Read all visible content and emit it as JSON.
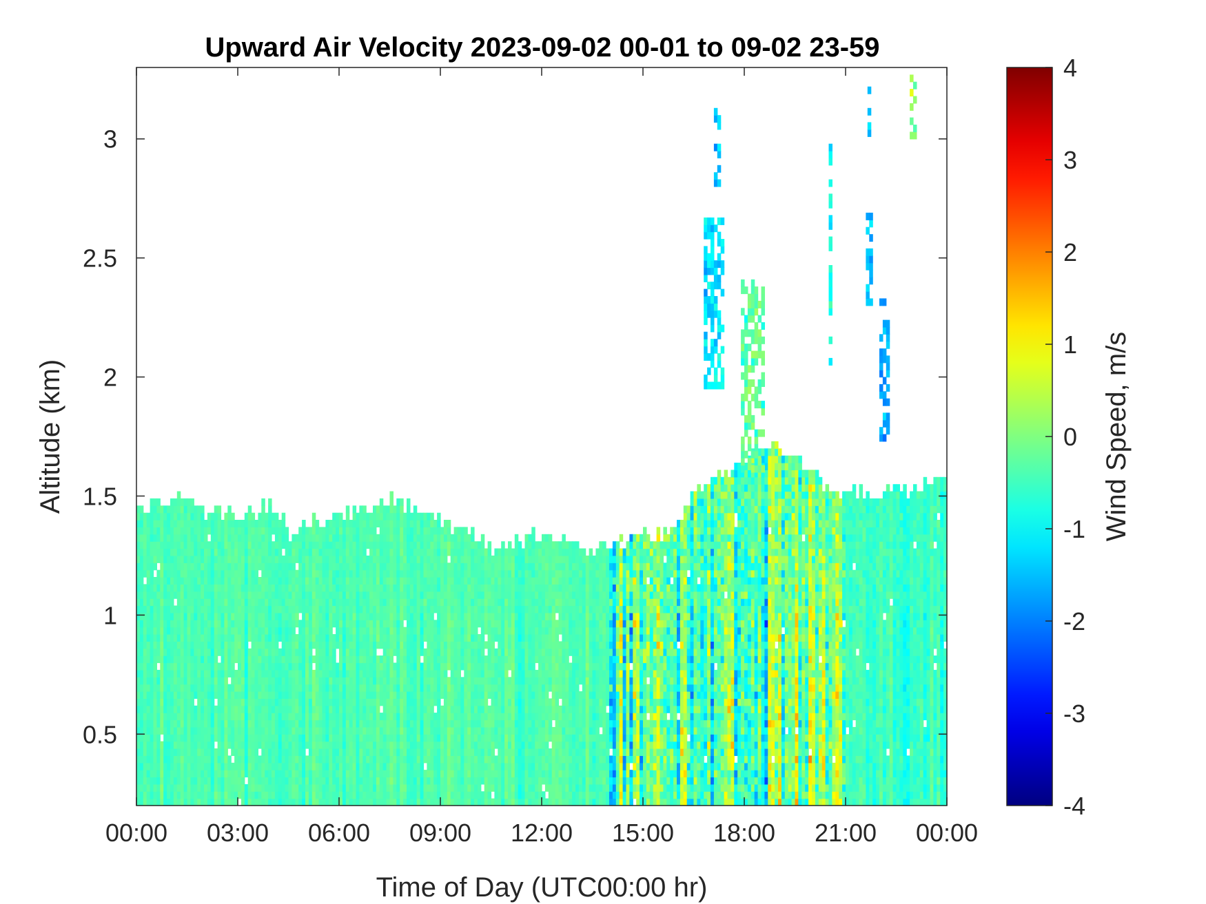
{
  "chart_data": {
    "type": "heatmap",
    "title": "Upward Air Velocity 2023-09-02 00-01 to 09-02 23-59",
    "xlabel": "Time of Day (UTC00:00 hr)",
    "ylabel": "Altitude (km)",
    "colorbar_label": "Wind Speed, m/s",
    "xlim": [
      0,
      24
    ],
    "ylim": [
      0.2,
      3.3
    ],
    "clim": [
      -4,
      4
    ],
    "colormap": "jet",
    "grid": false,
    "x_ticks": [
      {
        "value": 0,
        "label": "00:00"
      },
      {
        "value": 3,
        "label": "03:00"
      },
      {
        "value": 6,
        "label": "06:00"
      },
      {
        "value": 9,
        "label": "09:00"
      },
      {
        "value": 12,
        "label": "12:00"
      },
      {
        "value": 15,
        "label": "15:00"
      },
      {
        "value": 18,
        "label": "18:00"
      },
      {
        "value": 21,
        "label": "21:00"
      },
      {
        "value": 24,
        "label": "00:00"
      }
    ],
    "y_ticks": [
      {
        "value": 0.5,
        "label": "0.5"
      },
      {
        "value": 1,
        "label": "1"
      },
      {
        "value": 1.5,
        "label": "1.5"
      },
      {
        "value": 2,
        "label": "2"
      },
      {
        "value": 2.5,
        "label": "2.5"
      },
      {
        "value": 3,
        "label": "3"
      }
    ],
    "colorbar_ticks": [
      {
        "value": 4,
        "label": "4"
      },
      {
        "value": 3,
        "label": "3"
      },
      {
        "value": 2,
        "label": "2"
      },
      {
        "value": 1,
        "label": "1"
      },
      {
        "value": 0,
        "label": "0"
      },
      {
        "value": -1,
        "label": "-1"
      },
      {
        "value": -2,
        "label": "-2"
      },
      {
        "value": -3,
        "label": "-3"
      },
      {
        "value": -4,
        "label": "-4"
      }
    ],
    "data_top_altitude_km": {
      "time_hr": [
        0,
        0.5,
        1,
        1.5,
        2,
        3,
        4,
        4.7,
        5,
        6,
        7,
        7.5,
        8.5,
        9,
        10,
        10.5,
        11.5,
        12,
        13,
        13.5,
        14,
        15,
        15.8,
        16.5,
        17.5,
        18.5,
        19.5,
        20.5,
        21,
        22,
        23,
        24
      ],
      "altitude_km": [
        1.42,
        1.45,
        1.45,
        1.48,
        1.42,
        1.4,
        1.45,
        1.3,
        1.38,
        1.4,
        1.45,
        1.48,
        1.42,
        1.38,
        1.32,
        1.26,
        1.3,
        1.33,
        1.3,
        1.24,
        1.28,
        1.33,
        1.33,
        1.5,
        1.6,
        1.7,
        1.65,
        1.52,
        1.5,
        1.5,
        1.52,
        1.55
      ]
    },
    "velocity_regimes": [
      {
        "time_range_hr": [
          0,
          14
        ],
        "altitude_range_km": [
          0.2,
          1.5
        ],
        "mean_ms": -0.4,
        "spread_ms": 0.35
      },
      {
        "time_range_hr": [
          14,
          21
        ],
        "altitude_range_km": [
          0.2,
          1.7
        ],
        "mean_ms": -0.3,
        "spread_ms": 1.6
      },
      {
        "time_range_hr": [
          21,
          24
        ],
        "altitude_range_km": [
          0.2,
          1.55
        ],
        "mean_ms": -0.5,
        "spread_ms": 0.5
      }
    ],
    "upper_plumes": [
      {
        "time_range_hr": [
          16.8,
          17.4
        ],
        "altitude_range_km": [
          1.95,
          2.65
        ],
        "mean_ms": -1.2
      },
      {
        "time_range_hr": [
          17.9,
          18.6
        ],
        "altitude_range_km": [
          1.6,
          2.4
        ],
        "mean_ms": -0.2
      },
      {
        "time_range_hr": [
          17.1,
          17.3
        ],
        "altitude_range_km": [
          2.8,
          3.1
        ],
        "mean_ms": -1.3
      },
      {
        "time_range_hr": [
          20.5,
          20.6
        ],
        "altitude_range_km": [
          2.05,
          3.0
        ],
        "mean_ms": -0.9
      },
      {
        "time_range_hr": [
          21.6,
          21.8
        ],
        "altitude_range_km": [
          2.3,
          2.7
        ],
        "mean_ms": -1.5
      },
      {
        "time_range_hr": [
          22.0,
          22.3
        ],
        "altitude_range_km": [
          1.7,
          2.3
        ],
        "mean_ms": -1.7
      },
      {
        "time_range_hr": [
          21.65,
          21.75
        ],
        "altitude_range_km": [
          2.98,
          3.28
        ],
        "mean_ms": -1.3
      },
      {
        "time_range_hr": [
          22.9,
          23.1
        ],
        "altitude_range_km": [
          3.0,
          3.25
        ],
        "mean_ms": 0.2
      }
    ]
  }
}
